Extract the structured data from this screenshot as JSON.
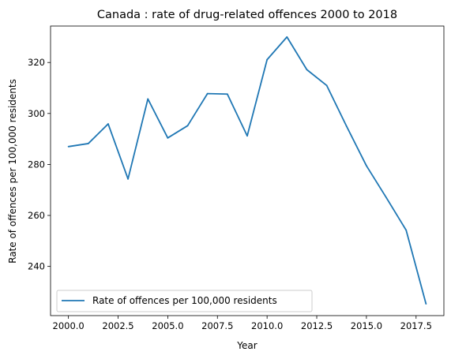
{
  "chart_data": {
    "type": "line",
    "title": "Canada : rate of drug-related offences 2000 to 2018",
    "xlabel": "Year",
    "ylabel": "Rate of offences per 100,000 residents",
    "xlim": [
      1999.1,
      2018.9
    ],
    "ylim": [
      220.7,
      334.3
    ],
    "xticks": [
      2000.0,
      2002.5,
      2005.0,
      2007.5,
      2010.0,
      2012.5,
      2015.0,
      2017.5
    ],
    "xtick_labels": [
      "2000.0",
      "2002.5",
      "2005.0",
      "2007.5",
      "2010.0",
      "2012.5",
      "2015.0",
      "2017.5"
    ],
    "yticks": [
      240,
      260,
      280,
      300,
      320
    ],
    "ytick_labels": [
      "240",
      "260",
      "280",
      "300",
      "320"
    ],
    "grid": false,
    "legend_position": "lower-left",
    "series": [
      {
        "name": "Rate of offences per 100,000 residents",
        "color": "#1f77b4",
        "x": [
          2000,
          2001,
          2002,
          2003,
          2004,
          2005,
          2006,
          2007,
          2008,
          2009,
          2010,
          2011,
          2012,
          2013,
          2014,
          2015,
          2016,
          2017,
          2018
        ],
        "y": [
          287.0,
          288.2,
          295.9,
          274.3,
          305.7,
          290.4,
          295.2,
          307.8,
          307.6,
          291.2,
          321.1,
          330.0,
          317.2,
          311.0,
          295.0,
          279.5,
          267.0,
          254.2,
          225.3
        ]
      }
    ]
  }
}
